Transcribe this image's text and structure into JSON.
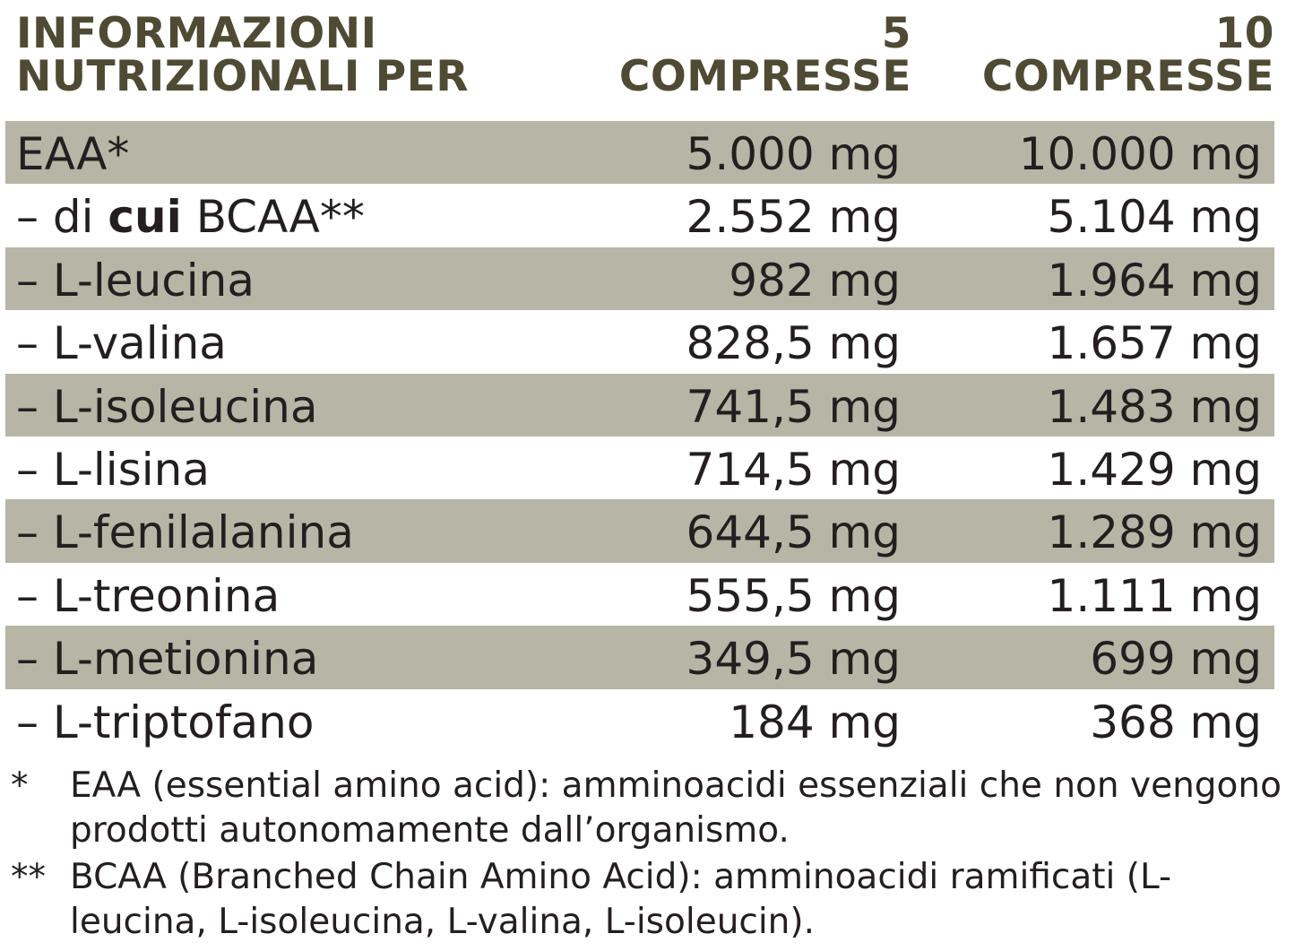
{
  "header": {
    "label": "INFORMAZIONI\nNUTRIZIONALI PER",
    "col1": "5\nCOMPRESSE",
    "col2": "10\nCOMPRESSE"
  },
  "rows": [
    {
      "name": "EAA*",
      "v1": "5.000 mg",
      "v2": "10.000 mg"
    },
    {
      "name_prefix": "– di ",
      "name_bold": "cui",
      "name_suffix": " BCAA**",
      "v1": "2.552 mg",
      "v2": "5.104 mg"
    },
    {
      "name": "– L-leucina",
      "v1": "982 mg",
      "v2": "1.964 mg"
    },
    {
      "name": "– L-valina",
      "v1": "828,5 mg",
      "v2": "1.657 mg"
    },
    {
      "name": "– L-isoleucina",
      "v1": "741,5 mg",
      "v2": "1.483 mg"
    },
    {
      "name": "– L-lisina",
      "v1": "714,5 mg",
      "v2": "1.429 mg"
    },
    {
      "name": "– L-fenilalanina",
      "v1": "644,5 mg",
      "v2": "1.289 mg"
    },
    {
      "name": "– L-treonina",
      "v1": "555,5 mg",
      "v2": "1.111 mg"
    },
    {
      "name": "– L-metionina",
      "v1": "349,5 mg",
      "v2": "699 mg"
    },
    {
      "name": "– L-triptofano",
      "v1": "184 mg",
      "v2": "368 mg"
    }
  ],
  "notes": [
    {
      "mark": "*",
      "text": "EAA (essential amino acid): amminoacidi essenziali che non vengono prodotti autonomamente dall’organismo."
    },
    {
      "mark": "**",
      "text": "BCAA (Branched Chain Amino Acid): amminoacidi ramificati (L-leucina, L-isoleucina, L-valina, L-isoleucin)."
    }
  ],
  "colors": {
    "header_text": "#4f4a34",
    "row_shade": "#b7b5a6",
    "body_text": "#231f20"
  }
}
